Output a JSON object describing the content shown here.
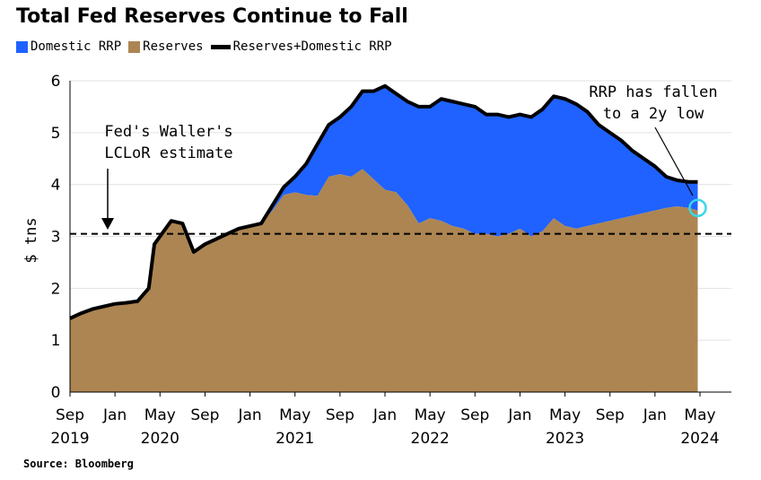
{
  "chart_data": {
    "type": "area",
    "title": "Total Fed Reserves Continue to Fall",
    "ylabel": "$ tns",
    "xlabel": "",
    "ylim": [
      0,
      6
    ],
    "yticks": [
      0,
      1,
      2,
      3,
      4,
      5,
      6
    ],
    "xlim": [
      0,
      56
    ],
    "xticks": [
      {
        "m": 0,
        "label": "Sep"
      },
      {
        "m": 4,
        "label": "Jan"
      },
      {
        "m": 8,
        "label": "May"
      },
      {
        "m": 12,
        "label": "Sep"
      },
      {
        "m": 16,
        "label": "Jan"
      },
      {
        "m": 20,
        "label": "May"
      },
      {
        "m": 24,
        "label": "Sep"
      },
      {
        "m": 28,
        "label": "Jan"
      },
      {
        "m": 32,
        "label": "May"
      },
      {
        "m": 36,
        "label": "Sep"
      },
      {
        "m": 40,
        "label": "Jan"
      },
      {
        "m": 44,
        "label": "May"
      },
      {
        "m": 48,
        "label": "Sep"
      },
      {
        "m": 52,
        "label": "Jan"
      },
      {
        "m": 56,
        "label": "May"
      }
    ],
    "year_labels": [
      {
        "m": 0,
        "label": "2019"
      },
      {
        "m": 8,
        "label": "2020"
      },
      {
        "m": 20,
        "label": "2021"
      },
      {
        "m": 32,
        "label": "2022"
      },
      {
        "m": 44,
        "label": "2023"
      },
      {
        "m": 56,
        "label": "2024"
      }
    ],
    "x": [
      0,
      1,
      2,
      3,
      4,
      5,
      6,
      7,
      7.5,
      8,
      9,
      10,
      11,
      12,
      13,
      14,
      15,
      16,
      17,
      18,
      19,
      20,
      21,
      22,
      23,
      24,
      25,
      26,
      27,
      28,
      29,
      30,
      31,
      32,
      33,
      34,
      35,
      36,
      37,
      38,
      39,
      40,
      41,
      42,
      43,
      44,
      45,
      46,
      47,
      48,
      49,
      50,
      51,
      52,
      53,
      54,
      55,
      55.8
    ],
    "series": [
      {
        "name": "Reserves",
        "color": "#ad8552",
        "values": [
          1.42,
          1.52,
          1.6,
          1.65,
          1.7,
          1.72,
          1.75,
          2.0,
          2.85,
          3.0,
          3.3,
          3.25,
          2.7,
          2.85,
          2.95,
          3.05,
          3.15,
          3.2,
          3.25,
          3.5,
          3.8,
          3.85,
          3.8,
          3.78,
          4.15,
          4.2,
          4.15,
          4.3,
          4.1,
          3.9,
          3.85,
          3.6,
          3.25,
          3.35,
          3.3,
          3.2,
          3.15,
          3.05,
          3.05,
          3.0,
          3.05,
          3.15,
          3.0,
          3.1,
          3.35,
          3.2,
          3.15,
          3.2,
          3.25,
          3.3,
          3.35,
          3.4,
          3.45,
          3.5,
          3.55,
          3.58,
          3.55,
          3.5
        ]
      },
      {
        "name": "Domestic RRP",
        "color": "#1f62ff",
        "values": [
          0,
          0,
          0,
          0,
          0,
          0,
          0,
          0,
          0,
          0,
          0,
          0,
          0,
          0,
          0,
          0,
          0,
          0,
          0,
          0.1,
          0.15,
          0.3,
          0.6,
          1.0,
          1.0,
          1.1,
          1.35,
          1.5,
          1.7,
          2.0,
          1.9,
          2.0,
          2.25,
          2.15,
          2.35,
          2.4,
          2.4,
          2.45,
          2.3,
          2.35,
          2.25,
          2.2,
          2.3,
          2.35,
          2.35,
          2.45,
          2.4,
          2.2,
          1.9,
          1.7,
          1.5,
          1.25,
          1.05,
          0.85,
          0.6,
          0.5,
          0.5,
          0.55
        ]
      }
    ],
    "total_line": {
      "name": "Reserves+Domestic RRP",
      "color": "#000000"
    },
    "reference_line": {
      "y": 3.05,
      "style": "dashed",
      "color": "#000000"
    },
    "annotations": [
      {
        "lines": [
          "Fed's Waller's",
          "LCLoR estimate"
        ]
      },
      {
        "lines": [
          "RRP has fallen",
          "to a 2y low"
        ]
      }
    ],
    "highlight_point": {
      "x": 55.8,
      "y": 3.55,
      "color": "#3ad6e6"
    },
    "legend_position": "top-left",
    "grid": "horizontal"
  },
  "source": "Source: Bloomberg"
}
